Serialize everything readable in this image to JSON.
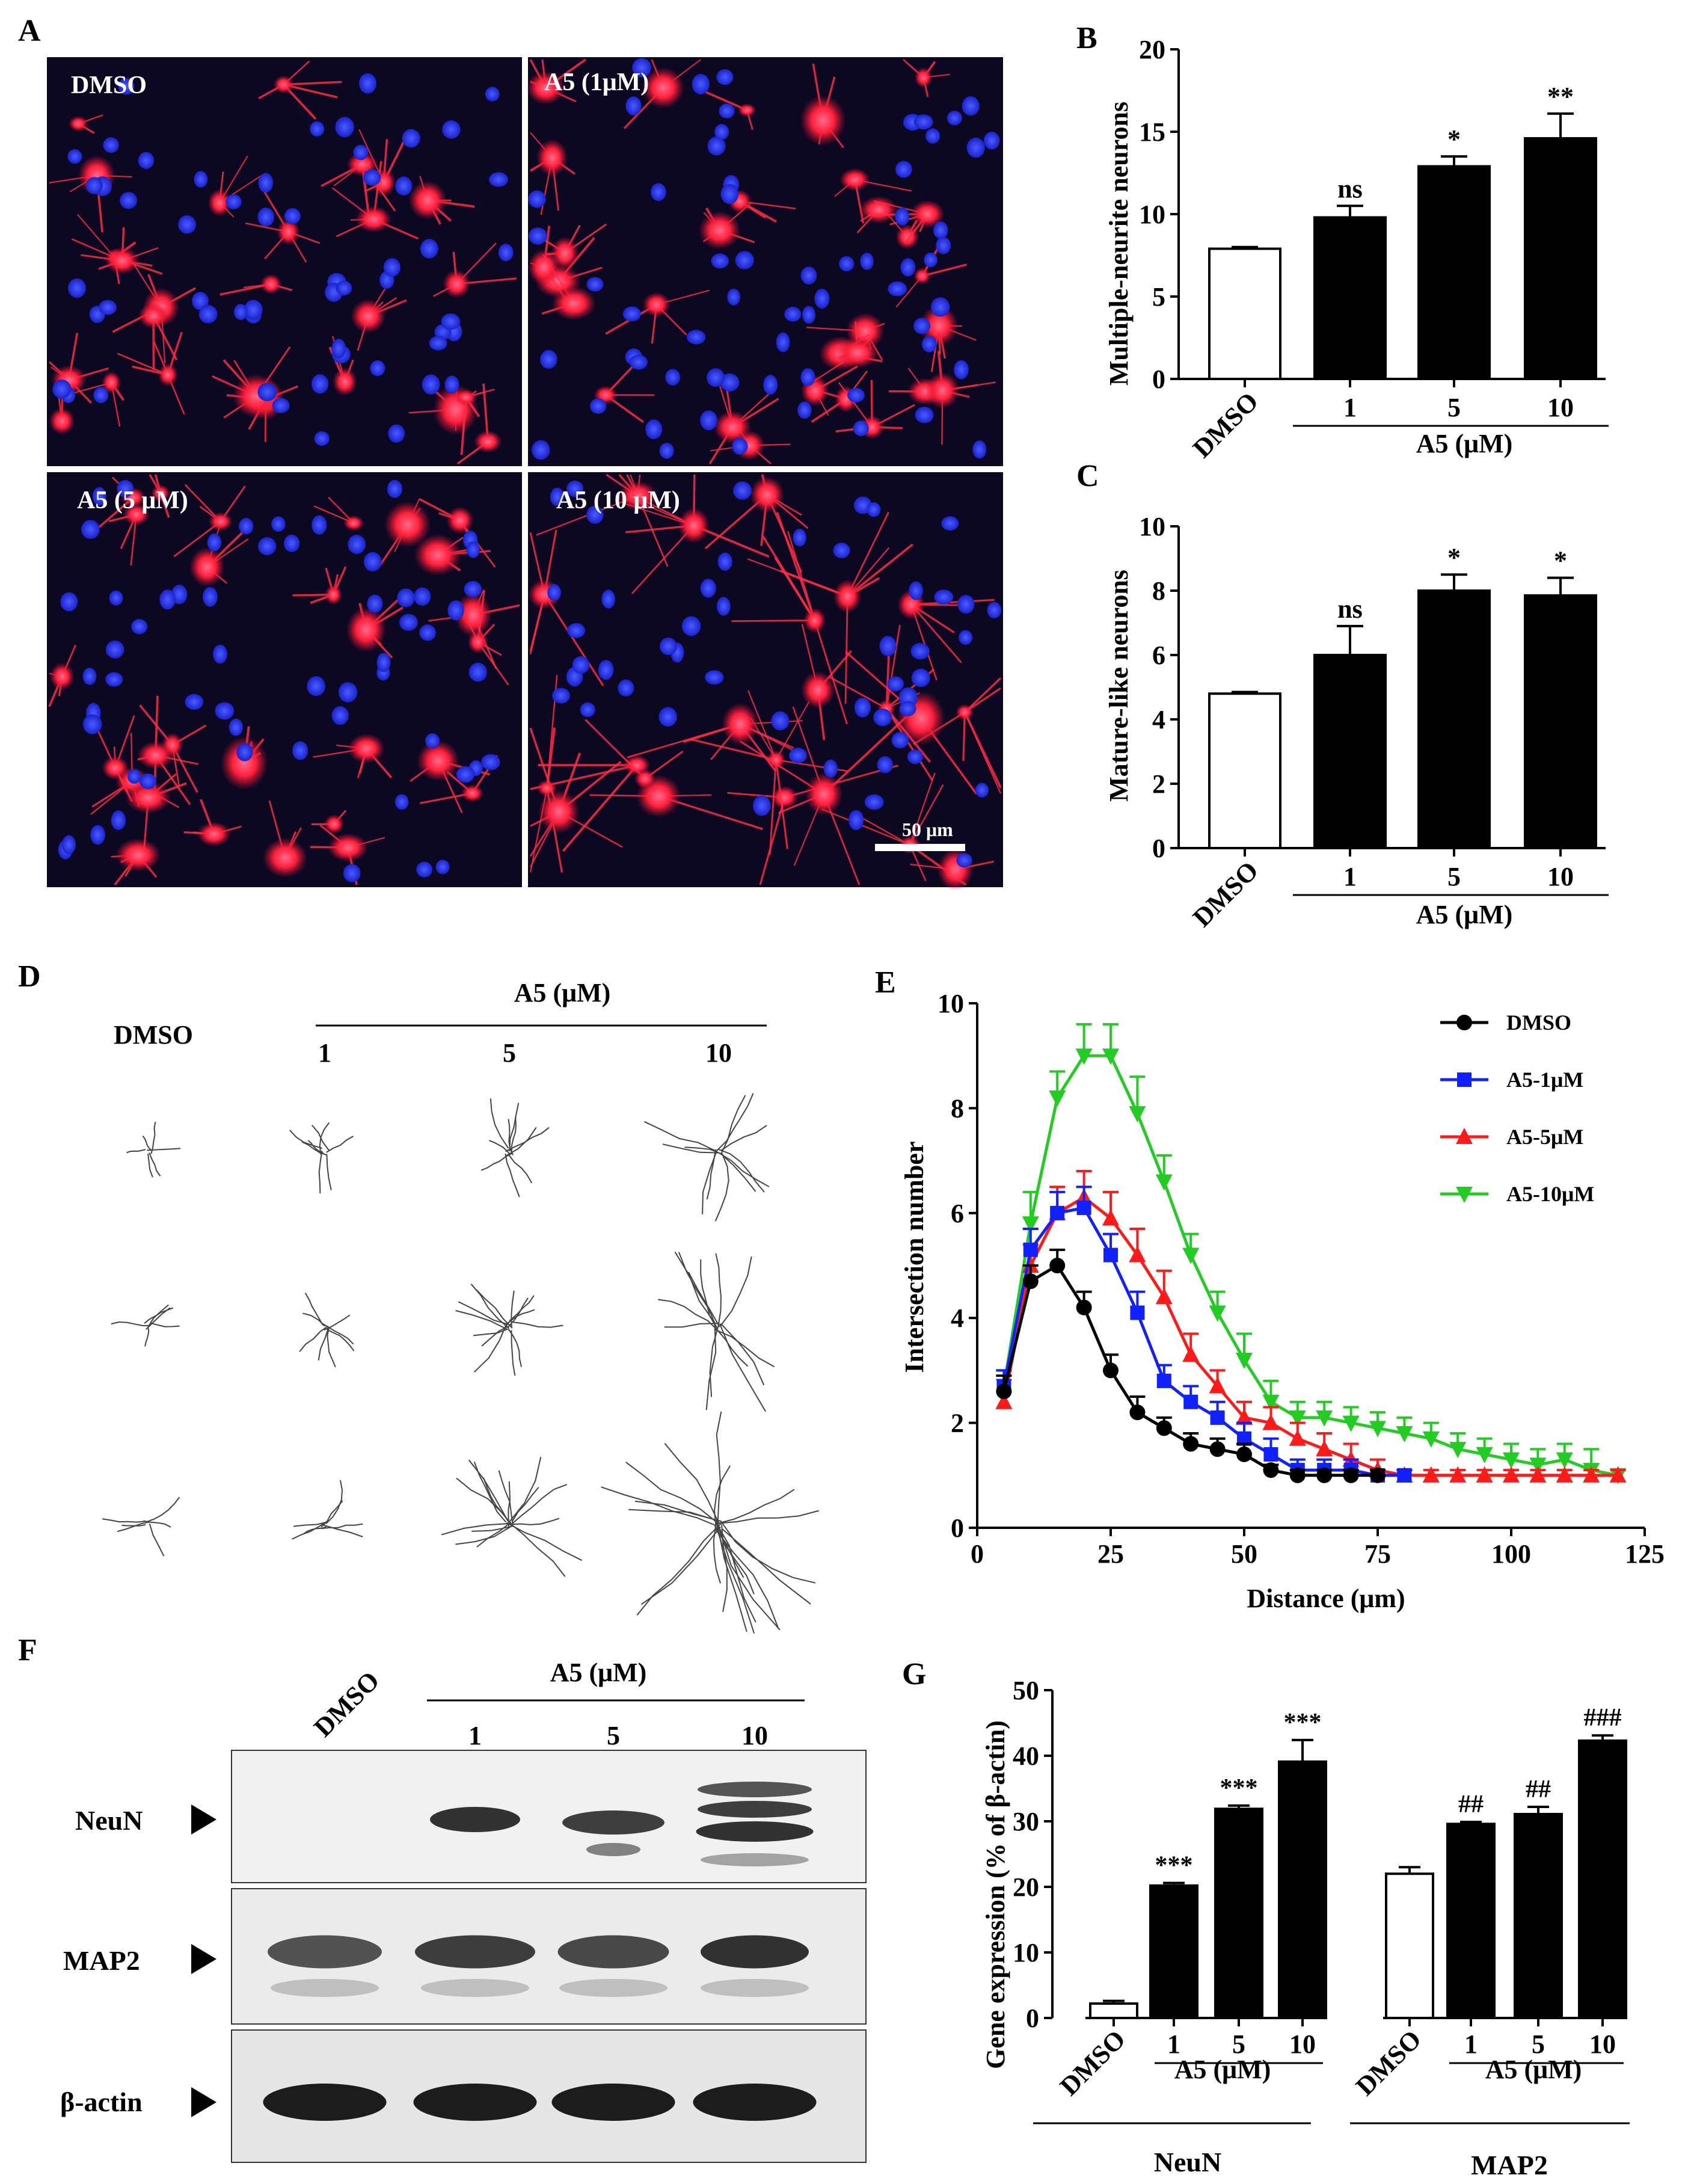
{
  "panel_letters": [
    "A",
    "B",
    "C",
    "D",
    "E",
    "F",
    "G"
  ],
  "panel_a": {
    "micrograph_labels": [
      "DMSO",
      "A5 (1μM)",
      "A5 (5 μM)",
      "A5 (10 μM)"
    ],
    "scale_bar_label": "50 μm",
    "colors": {
      "background": "#0d0822",
      "stain_red": "#ff1f3a",
      "stain_blue": "#2a36ff"
    }
  },
  "panel_d": {
    "dmso_label": "DMSO",
    "group_label": "A5 (μM)",
    "dose_labels": [
      "1",
      "5",
      "10"
    ]
  },
  "panel_f": {
    "dmso_label": "DMSO",
    "group_label": "A5 (μM)",
    "dose_labels": [
      "1",
      "5",
      "10"
    ],
    "blot_labels": [
      "NeuN",
      "MAP2",
      "β-actin"
    ]
  },
  "chart_data": [
    {
      "panel": "B",
      "type": "bar",
      "categories": [
        "DMSO",
        "1",
        "5",
        "10"
      ],
      "values": [
        7.9,
        9.8,
        12.9,
        14.6
      ],
      "errors": [
        0.1,
        0.7,
        0.6,
        1.5
      ],
      "significance": [
        "",
        "ns",
        "*",
        "**"
      ],
      "fills": [
        "#ffffff",
        "#000000",
        "#000000",
        "#000000"
      ],
      "ylabel": "Multiple-neurite neurons",
      "group_label": "A5 (μM)",
      "ylim": [
        0,
        20
      ],
      "yticks": [
        0,
        5,
        10,
        15,
        20
      ]
    },
    {
      "panel": "C",
      "type": "bar",
      "categories": [
        "DMSO",
        "1",
        "5",
        "10"
      ],
      "values": [
        4.8,
        6.0,
        8.0,
        7.85
      ],
      "errors": [
        0.05,
        0.9,
        0.5,
        0.55
      ],
      "significance": [
        "",
        "ns",
        "*",
        "*"
      ],
      "fills": [
        "#ffffff",
        "#000000",
        "#000000",
        "#000000"
      ],
      "ylabel": "Mature-like neurons",
      "group_label": "A5 (μM)",
      "ylim": [
        0,
        10
      ],
      "yticks": [
        0,
        2,
        4,
        6,
        8,
        10
      ]
    },
    {
      "panel": "E",
      "type": "line",
      "xlabel": "Distance (μm)",
      "ylabel": "Intersection number",
      "xlim": [
        0,
        125
      ],
      "ylim": [
        0,
        10
      ],
      "xticks": [
        0,
        25,
        50,
        75,
        100,
        125
      ],
      "yticks": [
        0,
        2,
        4,
        6,
        8,
        10
      ],
      "legend": "top-right",
      "series": [
        {
          "name": "DMSO",
          "color": "#000000",
          "marker": "circle",
          "x": [
            5,
            10,
            15,
            20,
            25,
            30,
            35,
            40,
            45,
            50,
            55,
            60,
            65,
            70,
            75
          ],
          "y": [
            2.6,
            4.7,
            5.0,
            4.2,
            3.0,
            2.2,
            1.9,
            1.6,
            1.5,
            1.4,
            1.1,
            1.0,
            1.0,
            1.0,
            1.0
          ],
          "err": [
            0.3,
            0.3,
            0.3,
            0.3,
            0.3,
            0.3,
            0.2,
            0.2,
            0.2,
            0.2,
            0.1,
            0.1,
            0.1,
            0.1,
            0.1
          ]
        },
        {
          "name": "A5-1μM",
          "color": "#1020ff",
          "marker": "square",
          "x": [
            5,
            10,
            15,
            20,
            25,
            30,
            35,
            40,
            45,
            50,
            55,
            60,
            65,
            70,
            75,
            80
          ],
          "y": [
            2.7,
            5.3,
            6.0,
            6.1,
            5.2,
            4.1,
            2.8,
            2.4,
            2.1,
            1.7,
            1.4,
            1.1,
            1.1,
            1.1,
            1.0,
            1.0
          ],
          "err": [
            0.3,
            0.4,
            0.4,
            0.4,
            0.4,
            0.4,
            0.3,
            0.3,
            0.3,
            0.3,
            0.3,
            0.2,
            0.2,
            0.2,
            0.1,
            0.1
          ]
        },
        {
          "name": "A5-5μM",
          "color": "#ff1a1a",
          "marker": "triangle-up",
          "x": [
            5,
            10,
            15,
            20,
            25,
            30,
            35,
            40,
            45,
            50,
            55,
            60,
            65,
            70,
            75,
            80,
            85,
            90,
            95,
            100,
            105,
            110,
            115,
            120
          ],
          "y": [
            2.4,
            5.0,
            6.0,
            6.3,
            5.9,
            5.2,
            4.4,
            3.3,
            2.7,
            2.1,
            2.0,
            1.7,
            1.5,
            1.3,
            1.1,
            1.0,
            1.0,
            1.0,
            1.0,
            1.0,
            1.0,
            1.0,
            1.0,
            1.0
          ],
          "err": [
            0.2,
            0.4,
            0.5,
            0.5,
            0.5,
            0.5,
            0.5,
            0.4,
            0.3,
            0.3,
            0.3,
            0.3,
            0.3,
            0.3,
            0.2,
            0.1,
            0.1,
            0.1,
            0.1,
            0.1,
            0.1,
            0.1,
            0.1,
            0.1
          ]
        },
        {
          "name": "A5-10μM",
          "color": "#22cc22",
          "marker": "triangle-down",
          "x": [
            5,
            10,
            15,
            20,
            25,
            30,
            35,
            40,
            45,
            50,
            55,
            60,
            65,
            70,
            75,
            80,
            85,
            90,
            95,
            100,
            105,
            110,
            115,
            120
          ],
          "y": [
            2.7,
            5.8,
            8.2,
            9.0,
            9.0,
            7.9,
            6.6,
            5.2,
            4.1,
            3.2,
            2.4,
            2.1,
            2.1,
            2.0,
            1.9,
            1.8,
            1.7,
            1.5,
            1.4,
            1.3,
            1.2,
            1.3,
            1.1,
            1.0
          ],
          "err": [
            0.3,
            0.6,
            0.5,
            0.6,
            0.6,
            0.7,
            0.5,
            0.4,
            0.4,
            0.5,
            0.4,
            0.3,
            0.3,
            0.3,
            0.3,
            0.3,
            0.3,
            0.3,
            0.3,
            0.3,
            0.3,
            0.3,
            0.4,
            0.1
          ]
        }
      ]
    },
    {
      "panel": "G",
      "type": "bar",
      "ylabel": "Gene expression (% of β-actin)",
      "ylim": [
        0,
        50
      ],
      "yticks": [
        0,
        10,
        20,
        30,
        40,
        50
      ],
      "group_label": "A5 (μM)",
      "groups": [
        {
          "name": "NeuN",
          "categories": [
            "DMSO",
            "1",
            "5",
            "10"
          ],
          "values": [
            2.2,
            20.2,
            31.9,
            39.1
          ],
          "errors": [
            0.4,
            0.4,
            0.5,
            3.3
          ],
          "significance": [
            "",
            "***",
            "***",
            "***"
          ],
          "fills": [
            "#ffffff",
            "#000000",
            "#000000",
            "#000000"
          ]
        },
        {
          "name": "MAP2",
          "categories": [
            "DMSO",
            "1",
            "5",
            "10"
          ],
          "values": [
            22.0,
            29.6,
            31.1,
            42.3
          ],
          "errors": [
            1.0,
            0.3,
            1.1,
            0.8
          ],
          "significance": [
            "",
            "##",
            "##",
            "###"
          ],
          "fills": [
            "#ffffff",
            "#000000",
            "#000000",
            "#000000"
          ]
        }
      ]
    }
  ]
}
